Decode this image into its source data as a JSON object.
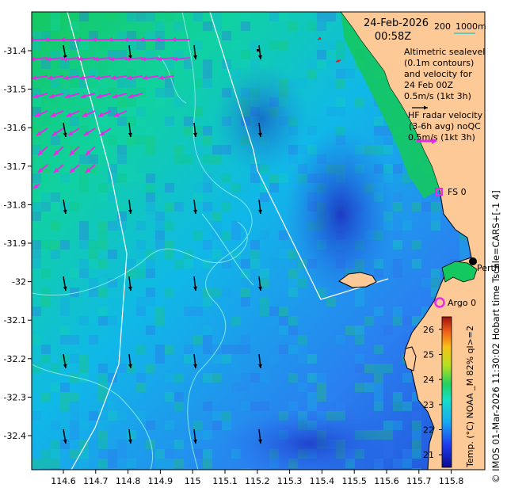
{
  "title": {
    "date": "24-Feb-2026",
    "time": "00:58Z"
  },
  "scale_bar": {
    "left": "200",
    "right": "1000m"
  },
  "legend": {
    "altimetry": [
      "Altimetric sealevel",
      "(0.1m contours)",
      "and velocity for",
      "24 Feb 00Z",
      "0.5m/s (1kt 3h)"
    ],
    "hf_radar": [
      "HF radar velocity",
      "(3-6h avg) noQC",
      "0.5m/s (1kt 3h)"
    ]
  },
  "places": {
    "fs0": "FS 0",
    "argo0": "Argo 0",
    "perth": "Perth"
  },
  "axes": {
    "x_ticks": [
      "114.6",
      "114.7",
      "114.8",
      "114.9",
      "115",
      "115.1",
      "115.2",
      "115.3",
      "115.4",
      "115.5",
      "115.6",
      "115.7",
      "115.8"
    ],
    "y_ticks": [
      "-31.4",
      "-31.5",
      "-31.6",
      "-31.7",
      "-31.8",
      "-31.9",
      "-32",
      "-32.1",
      "-32.2",
      "-32.3",
      "-32.4"
    ]
  },
  "colorbar": {
    "label": "Temp. (°C) NOAA _M 82% ql>=2",
    "ticks": [
      "26",
      "25",
      "24",
      "23",
      "22",
      "21"
    ],
    "min": 20.5,
    "max": 26.5
  },
  "side_label": "© IMOS 01-Mar-2026 11:30:02 Hobart time Tscale=CARS+[-1 4]",
  "colors": {
    "land": "#fcc997",
    "hf_arrow": "#e82ae8",
    "alt_arrow": "#000000",
    "contour": "#7fe6e6",
    "track": "#ffffff"
  }
}
